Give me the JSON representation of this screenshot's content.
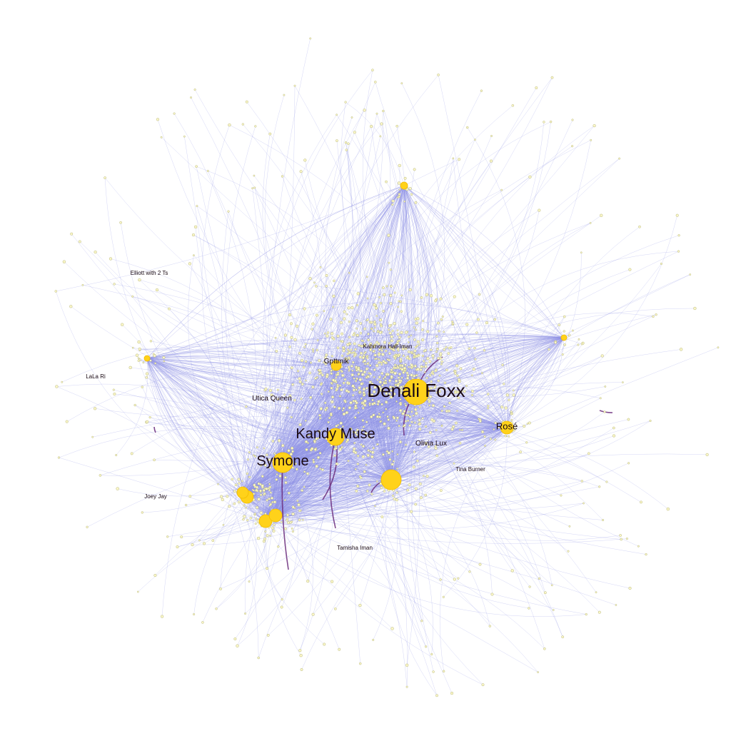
{
  "graph": {
    "colors": {
      "background": "#ffffff",
      "edge": "#8f92e6",
      "edge_strong": "#6a2a7a",
      "node_fill": "#ffd21a",
      "node_small_fill": "#fbf7c8",
      "node_small_stroke": "#a8a868",
      "label": "#1a0a14"
    },
    "labels": {
      "denali_foxx": "Denali Foxx",
      "kandy_muse": "Kandy Muse",
      "symone": "Symone",
      "rose": "Rosé",
      "utica_queen": "Utica Queen",
      "gottmik": "Gpttmik",
      "olivia_lux": "Olivia Lux",
      "tina_burner": "Tina Burner",
      "kahmora_hall_iman": "Kahmora Hall-Iman",
      "tamisha_iman": "Tamisha Iman",
      "elliott_with_2_ts": "Elliott with 2 Ts",
      "lala_ri": "LaLa Ri",
      "joey_jay": "Joey Jay"
    },
    "hubs": [
      {
        "id": "denali_foxx",
        "size": 18
      },
      {
        "id": "kandy_muse",
        "size": 12
      },
      {
        "id": "symone",
        "size": 14
      },
      {
        "id": "rose",
        "size": 9
      },
      {
        "id": "olivia_lux",
        "size": 14
      },
      {
        "id": "utica_queen",
        "size": 9
      },
      {
        "id": "gottmik",
        "size": 7
      },
      {
        "id": "cluster_a",
        "size": 9
      },
      {
        "id": "cluster_b",
        "size": 9
      },
      {
        "id": "cluster_c",
        "size": 8
      },
      {
        "id": "top_hub",
        "size": 5
      },
      {
        "id": "left_hub",
        "size": 4
      },
      {
        "id": "right_hub",
        "size": 4
      }
    ]
  }
}
